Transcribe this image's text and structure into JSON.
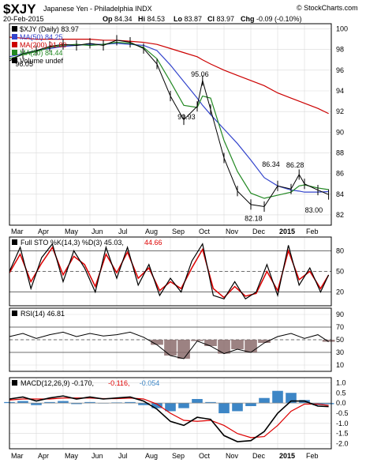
{
  "header": {
    "symbol": "$XJY",
    "name": "Japanese Yen - Philadelphia INDX",
    "brand": "© StockCharts.com",
    "date": "20-Feb-2015",
    "quote": [
      {
        "k": "Op",
        "v": "84.34"
      },
      {
        "k": "Hi",
        "v": "84.53"
      },
      {
        "k": "Lo",
        "v": "83.87"
      },
      {
        "k": "Cl",
        "v": "83.97"
      },
      {
        "k": "Chg",
        "v": "-0.09 (-0.10%)"
      }
    ]
  },
  "colors": {
    "price": "#000000",
    "ma50": "#3344cc",
    "ma200": "#cc0000",
    "ma20": "#228822",
    "k_line": "#000000",
    "d_line": "#dd0000",
    "rsi_line": "#000000",
    "rsi_fill": "#8b6c6c",
    "macd_line": "#000000",
    "signal_line": "#dd0000",
    "hist": "#3d86c6",
    "grid": "#d9d9d9",
    "frame": "#000000"
  },
  "x_axis": {
    "labels": [
      "Mar",
      "Apr",
      "May",
      "Jun",
      "Jul",
      "Aug",
      "Sep",
      "Oct",
      "Nov",
      "Dec",
      "2015",
      "Feb"
    ],
    "positions": [
      0,
      1,
      2,
      3,
      4,
      5,
      6,
      7,
      8,
      9,
      10,
      11
    ]
  },
  "chart_data": [
    {
      "type": "line",
      "panel": "price",
      "legend": [
        {
          "text": "$XJY (Daily) 83.97",
          "color_key": "price"
        },
        {
          "text": "MA(50) 84.25",
          "color_key": "ma50"
        },
        {
          "text": "MA(200) 91.80",
          "color_key": "ma200"
        },
        {
          "text": "MA(20) 84.44",
          "color_key": "ma20"
        },
        {
          "text": "Volume undef",
          "color_key": "price"
        }
      ],
      "y_ticks": [
        82,
        84,
        86,
        88,
        90,
        92,
        94,
        96,
        98,
        100
      ],
      "ylim": [
        81,
        100.5
      ],
      "x": [
        0,
        0.5,
        1,
        1.5,
        2,
        2.5,
        3,
        3.5,
        4,
        4.5,
        5,
        5.5,
        6,
        6.5,
        7,
        7.2,
        7.5,
        8,
        8.5,
        9,
        9.5,
        10,
        10.5,
        10.8,
        11,
        11.5,
        11.9
      ],
      "series": [
        {
          "name": "$XJY (Daily)",
          "values": [
            96.9,
            97.6,
            97.9,
            98.3,
            98.5,
            98.4,
            98.6,
            98.4,
            98.9,
            98.7,
            98.1,
            96.6,
            93.5,
            91.2,
            92.5,
            95.0,
            92.2,
            87.5,
            84.3,
            83.0,
            82.8,
            84.8,
            84.5,
            85.9,
            85.0,
            84.4,
            83.97
          ]
        },
        {
          "name": "MA(50)",
          "values": [
            97.3,
            97.6,
            97.9,
            98.1,
            98.3,
            98.4,
            98.5,
            98.5,
            98.6,
            98.5,
            98.4,
            97.9,
            96.5,
            94.9,
            93.3,
            92.6,
            91.7,
            90.3,
            88.9,
            87.3,
            85.6,
            84.8,
            84.4,
            84.3,
            84.2,
            84.2,
            84.25
          ]
        },
        {
          "name": "MA(200)",
          "values": [
            99.2,
            99.1,
            99.0,
            99.0,
            99.0,
            99.0,
            99.0,
            98.9,
            98.9,
            98.8,
            98.7,
            98.5,
            98.1,
            97.7,
            97.3,
            97.0,
            96.6,
            96.0,
            95.5,
            95.0,
            94.5,
            93.8,
            93.3,
            93.0,
            92.8,
            92.3,
            91.8
          ]
        },
        {
          "name": "MA(20)",
          "values": [
            97.1,
            97.5,
            97.8,
            98.2,
            98.4,
            98.5,
            98.4,
            98.5,
            98.7,
            98.6,
            98.2,
            97.1,
            94.9,
            92.6,
            92.4,
            93.5,
            93.3,
            89.2,
            86.2,
            84.1,
            83.6,
            83.9,
            84.2,
            84.8,
            84.9,
            84.6,
            84.44
          ]
        }
      ],
      "annotations": [
        {
          "text": "96.05",
          "x": 0.55,
          "y": 96.05
        },
        {
          "text": "95.06",
          "x": 7.1,
          "y": 95.06
        },
        {
          "text": "90.93",
          "x": 6.6,
          "y": 90.93
        },
        {
          "text": "86.34",
          "x": 9.75,
          "y": 86.34
        },
        {
          "text": "86.28",
          "x": 10.65,
          "y": 86.28
        },
        {
          "text": "82.18",
          "x": 9.1,
          "y": 82.18
        },
        {
          "text": "83.00",
          "x": 11.35,
          "y": 83.0
        }
      ]
    },
    {
      "type": "line",
      "panel": "stochastic",
      "legend": [
        {
          "text": "Full STO %K(14,3) %D(3) 45.03,",
          "color_key": "k_line"
        },
        {
          "text": "44.66",
          "color_key": "d_line"
        }
      ],
      "y_ticks": [
        20,
        50,
        80
      ],
      "ylim": [
        0,
        100
      ],
      "reference_lines": [
        20,
        50,
        80
      ],
      "x": [
        0,
        0.4,
        0.8,
        1.2,
        1.6,
        2.0,
        2.4,
        2.8,
        3.2,
        3.6,
        4.0,
        4.4,
        4.8,
        5.2,
        5.6,
        6.0,
        6.4,
        6.8,
        7.2,
        7.6,
        8.0,
        8.4,
        8.8,
        9.2,
        9.6,
        10.0,
        10.4,
        10.8,
        11.2,
        11.6,
        11.9
      ],
      "series": [
        {
          "name": "%K",
          "values": [
            50,
            85,
            25,
            70,
            90,
            35,
            80,
            55,
            20,
            85,
            40,
            85,
            30,
            60,
            15,
            40,
            20,
            65,
            90,
            15,
            10,
            35,
            10,
            20,
            60,
            15,
            88,
            30,
            55,
            20,
            45
          ]
        },
        {
          "name": "%D",
          "values": [
            48,
            75,
            35,
            62,
            85,
            45,
            72,
            60,
            28,
            75,
            48,
            78,
            40,
            55,
            22,
            35,
            25,
            55,
            82,
            25,
            12,
            28,
            14,
            18,
            50,
            22,
            80,
            38,
            50,
            25,
            44.66
          ]
        }
      ]
    },
    {
      "type": "line",
      "panel": "rsi",
      "legend": [
        {
          "text": "RSI(14) 46.81",
          "color_key": "rsi_line"
        }
      ],
      "y_ticks": [
        10,
        30,
        50,
        70,
        90
      ],
      "ylim": [
        0,
        100
      ],
      "reference_lines": [
        30,
        50,
        70
      ],
      "x": [
        0,
        0.5,
        1,
        1.5,
        2,
        2.5,
        3,
        3.5,
        4,
        4.5,
        5,
        5.5,
        6,
        6.5,
        7,
        7.5,
        8,
        8.5,
        9,
        9.5,
        10,
        10.5,
        11,
        11.5,
        11.9
      ],
      "series": [
        {
          "name": "RSI(14)",
          "values": [
            55,
            60,
            52,
            58,
            62,
            55,
            60,
            56,
            58,
            62,
            54,
            42,
            25,
            20,
            48,
            40,
            28,
            35,
            30,
            45,
            55,
            60,
            52,
            58,
            46.81
          ]
        }
      ]
    },
    {
      "type": "line",
      "panel": "macd",
      "legend": [
        {
          "text": "MACD(12,26,9) -0.170,",
          "color_key": "macd_line"
        },
        {
          "text": "-0.116,",
          "color_key": "signal_line"
        },
        {
          "text": "-0.054",
          "color_key": "hist"
        }
      ],
      "y_ticks": [
        -2.0,
        -1.5,
        -1.0,
        -0.5,
        0.0,
        0.5,
        1.0
      ],
      "ylim": [
        -2.25,
        1.25
      ],
      "x": [
        0,
        0.5,
        1,
        1.5,
        2,
        2.5,
        3,
        3.5,
        4,
        4.5,
        5,
        5.5,
        6,
        6.5,
        7,
        7.5,
        8,
        8.5,
        9,
        9.5,
        10,
        10.5,
        11,
        11.5,
        11.9
      ],
      "series": [
        {
          "name": "MACD",
          "values": [
            0.2,
            0.3,
            0.1,
            0.25,
            0.35,
            0.2,
            0.3,
            0.2,
            0.25,
            0.3,
            0.1,
            -0.3,
            -0.9,
            -1.1,
            -0.7,
            -0.8,
            -1.6,
            -1.9,
            -1.85,
            -1.4,
            -0.5,
            0.1,
            0.1,
            -0.15,
            -0.17
          ]
        },
        {
          "name": "Signal",
          "values": [
            0.15,
            0.2,
            0.2,
            0.2,
            0.25,
            0.25,
            0.25,
            0.22,
            0.22,
            0.25,
            0.2,
            -0.05,
            -0.5,
            -0.85,
            -0.9,
            -0.85,
            -1.1,
            -1.5,
            -1.7,
            -1.65,
            -1.1,
            -0.4,
            -0.05,
            -0.05,
            -0.116
          ]
        },
        {
          "name": "Histogram",
          "values": [
            0.05,
            0.1,
            -0.1,
            0.05,
            0.1,
            -0.05,
            0.05,
            -0.02,
            0.03,
            0.05,
            -0.1,
            -0.25,
            -0.4,
            -0.25,
            0.2,
            0.05,
            -0.5,
            -0.4,
            -0.15,
            0.25,
            0.6,
            0.5,
            0.15,
            -0.1,
            -0.054
          ]
        }
      ]
    }
  ]
}
